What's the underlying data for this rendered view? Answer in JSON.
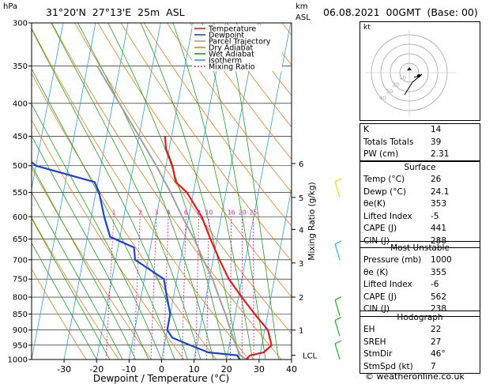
{
  "header": {
    "hpa_label": "hPa",
    "location": "31°20'N  27°13'E  25m  ASL",
    "km_label": "km",
    "asl_label": "ASL",
    "date": "06.08.2021  00GMT  (Base: 00)"
  },
  "chart_data": {
    "type": "skew-t",
    "ylabel": "hPa",
    "y_right_label": "Mixing Ratio (g/kg)",
    "xlabel": "Dewpoint / Temperature (°C)",
    "x_ticks": [
      -30,
      -20,
      -10,
      0,
      10,
      20,
      30,
      40
    ],
    "pressure_levels": [
      300,
      350,
      400,
      450,
      500,
      550,
      600,
      650,
      700,
      750,
      800,
      850,
      900,
      950,
      1000
    ],
    "km_ticks": [
      {
        "label": "LCL",
        "p": 985
      },
      {
        "label": "1",
        "p": 900
      },
      {
        "label": "2",
        "p": 800
      },
      {
        "label": "3",
        "p": 708
      },
      {
        "label": "4",
        "p": 628
      },
      {
        "label": "5",
        "p": 560
      },
      {
        "label": "6",
        "p": 496
      }
    ],
    "mixing_ratio_labels": [
      "1",
      "2",
      "3",
      "4",
      "6",
      "8",
      "10",
      "16",
      "20",
      "25"
    ],
    "legend": [
      {
        "name": "Temperature",
        "color": "#e41a1c"
      },
      {
        "name": "Dewpoint",
        "color": "#2040d0"
      },
      {
        "name": "Parcel Trajectory",
        "color": "#a0a0a0"
      },
      {
        "name": "Dry Adiabat",
        "color": "#e08020"
      },
      {
        "name": "Wet Adiabat",
        "color": "#20a020"
      },
      {
        "name": "Isotherm",
        "color": "#30a0e0"
      },
      {
        "name": "Mixing Ratio",
        "color": "#e020a0"
      }
    ],
    "series": [
      {
        "name": "Temperature",
        "color": "#e41a1c",
        "points": [
          {
            "p": 1000,
            "t": 26
          },
          {
            "p": 985,
            "t": 27
          },
          {
            "p": 975,
            "t": 31
          },
          {
            "p": 950,
            "t": 33
          },
          {
            "p": 925,
            "t": 32
          },
          {
            "p": 900,
            "t": 31
          },
          {
            "p": 850,
            "t": 26
          },
          {
            "p": 800,
            "t": 21
          },
          {
            "p": 750,
            "t": 16
          },
          {
            "p": 700,
            "t": 12
          },
          {
            "p": 650,
            "t": 8
          },
          {
            "p": 600,
            "t": 4
          },
          {
            "p": 550,
            "t": -2
          },
          {
            "p": 530,
            "t": -6
          },
          {
            "p": 500,
            "t": -8
          },
          {
            "p": 470,
            "t": -11
          },
          {
            "p": 450,
            "t": -12
          }
        ]
      },
      {
        "name": "Dewpoint",
        "color": "#2040d0",
        "points": [
          {
            "p": 1000,
            "t": 24.1
          },
          {
            "p": 985,
            "t": 23
          },
          {
            "p": 975,
            "t": 14
          },
          {
            "p": 950,
            "t": 8
          },
          {
            "p": 925,
            "t": 2
          },
          {
            "p": 900,
            "t": 0
          },
          {
            "p": 850,
            "t": 0
          },
          {
            "p": 800,
            "t": -2
          },
          {
            "p": 750,
            "t": -4
          },
          {
            "p": 700,
            "t": -14
          },
          {
            "p": 670,
            "t": -15
          },
          {
            "p": 645,
            "t": -23
          },
          {
            "p": 600,
            "t": -26
          },
          {
            "p": 550,
            "t": -29
          },
          {
            "p": 530,
            "t": -31
          },
          {
            "p": 500,
            "t": -50
          },
          {
            "p": 480,
            "t": -55
          },
          {
            "p": 455,
            "t": -61
          },
          {
            "p": 445,
            "t": -58
          }
        ]
      },
      {
        "name": "Parcel Trajectory",
        "color": "#a0a0a0",
        "points": [
          {
            "p": 1000,
            "t": 26
          },
          {
            "p": 985,
            "t": 24
          },
          {
            "p": 950,
            "t": 22
          },
          {
            "p": 900,
            "t": 19.5
          },
          {
            "p": 850,
            "t": 17
          },
          {
            "p": 800,
            "t": 14
          },
          {
            "p": 750,
            "t": 11
          },
          {
            "p": 700,
            "t": 7
          },
          {
            "p": 650,
            "t": 3
          },
          {
            "p": 600,
            "t": -2
          },
          {
            "p": 550,
            "t": -7
          },
          {
            "p": 500,
            "t": -13
          },
          {
            "p": 450,
            "t": -20
          },
          {
            "p": 400,
            "t": -28
          },
          {
            "p": 350,
            "t": -37
          }
        ]
      }
    ],
    "wind_barbs": [
      {
        "p": 1000,
        "color": "#20b020"
      },
      {
        "p": 920,
        "color": "#20b020"
      },
      {
        "p": 855,
        "color": "#20b020"
      },
      {
        "p": 700,
        "color": "#20c0e0"
      },
      {
        "p": 560,
        "color": "#e0e020"
      }
    ]
  },
  "hodograph": {
    "unit": "kt",
    "ring_labels": [
      "10",
      "20",
      "30",
      "40"
    ]
  },
  "indices": [
    {
      "label": "K",
      "value": "14"
    },
    {
      "label": "Totals Totals",
      "value": "39"
    },
    {
      "label": "PW (cm)",
      "value": "2.31"
    }
  ],
  "surface": {
    "title": "Surface",
    "rows": [
      {
        "label": "Temp (°C)",
        "value": "26"
      },
      {
        "label": "Dewp (°C)",
        "value": "24.1"
      },
      {
        "label": "θe(K)",
        "value": "353"
      },
      {
        "label": "Lifted Index",
        "value": "-5"
      },
      {
        "label": "CAPE (J)",
        "value": "441"
      },
      {
        "label": "CIN (J)",
        "value": "288"
      }
    ]
  },
  "most_unstable": {
    "title": "Most Unstable",
    "rows": [
      {
        "label": "Pressure (mb)",
        "value": "1000"
      },
      {
        "label": "θe (K)",
        "value": "355"
      },
      {
        "label": "Lifted Index",
        "value": "-6"
      },
      {
        "label": "CAPE (J)",
        "value": "562"
      },
      {
        "label": "CIN (J)",
        "value": "238"
      }
    ]
  },
  "hodograph_table": {
    "title": "Hodograph",
    "rows": [
      {
        "label": "EH",
        "value": "22"
      },
      {
        "label": "SREH",
        "value": "27"
      },
      {
        "label": "StmDir",
        "value": "46°"
      },
      {
        "label": "StmSpd (kt)",
        "value": "7"
      }
    ]
  },
  "footer": {
    "copyright": "© weatheronline.co.uk"
  }
}
